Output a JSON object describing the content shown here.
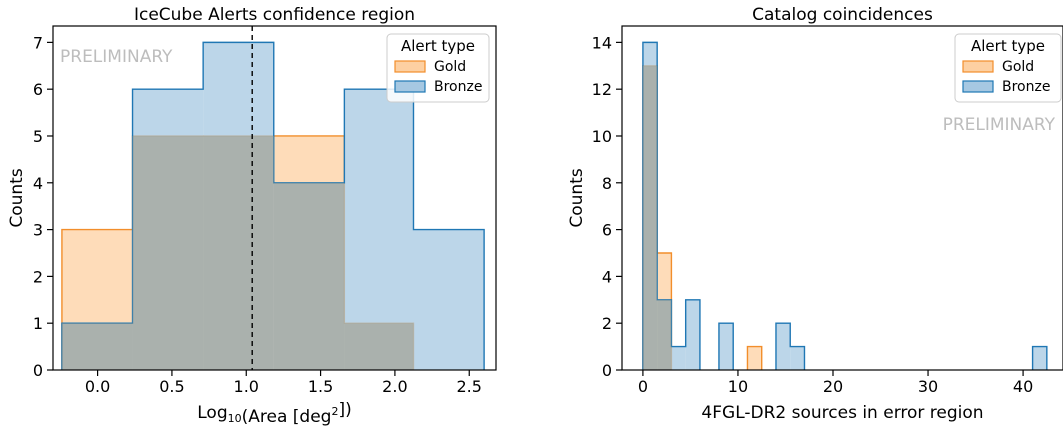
{
  "chart_data": [
    {
      "type": "histogram",
      "title": "IceCube Alerts confidence region",
      "xlabel_prefix": "Log",
      "xlabel_sub": "10",
      "xlabel_mid": "(Area [deg",
      "xlabel_sup": "2",
      "xlabel_end": "])",
      "ylabel": "Counts",
      "xlim": [
        -0.3,
        2.68
      ],
      "ylim": [
        0,
        7.35
      ],
      "xticks": [
        0.0,
        0.5,
        1.0,
        1.5,
        2.0,
        2.5
      ],
      "xtick_labels": [
        "0.0",
        "0.5",
        "1.0",
        "1.5",
        "2.0",
        "2.5"
      ],
      "yticks": [
        0,
        1,
        2,
        3,
        4,
        5,
        6,
        7
      ],
      "ytick_labels": [
        "0",
        "1",
        "2",
        "3",
        "4",
        "5",
        "6",
        "7"
      ],
      "watermark": "PRELIMINARY",
      "vline_x": 1.04,
      "legend_title": "Alert type",
      "legend_position": "top-right",
      "watermark_position": "top-left",
      "series": [
        {
          "name": "Gold",
          "color": "#f28e2b",
          "fill": "#fdd0a2",
          "bins": [
            [
              -0.24,
              0.235,
              3
            ],
            [
              0.235,
              0.71,
              5
            ],
            [
              0.71,
              1.185,
              5
            ],
            [
              1.185,
              1.66,
              5
            ],
            [
              1.66,
              2.125,
              1
            ]
          ]
        },
        {
          "name": "Bronze",
          "color": "#1f77b4",
          "fill": "#a6c8e2",
          "bins": [
            [
              -0.24,
              0.235,
              1
            ],
            [
              0.235,
              0.71,
              6
            ],
            [
              0.71,
              1.185,
              7
            ],
            [
              1.185,
              1.66,
              4
            ],
            [
              1.66,
              2.125,
              6
            ],
            [
              2.125,
              2.6,
              3
            ]
          ]
        }
      ]
    },
    {
      "type": "histogram",
      "title": "Catalog coincidences",
      "xlabel": "4FGL-DR2 sources in error region",
      "ylabel": "Counts",
      "xlim": [
        -2.2,
        44.2
      ],
      "ylim": [
        0,
        14.7
      ],
      "xticks": [
        0,
        10,
        20,
        30,
        40
      ],
      "xtick_labels": [
        "0",
        "10",
        "20",
        "30",
        "40"
      ],
      "yticks": [
        0,
        2,
        4,
        6,
        8,
        10,
        12,
        14
      ],
      "ytick_labels": [
        "0",
        "2",
        "4",
        "6",
        "8",
        "10",
        "12",
        "14"
      ],
      "watermark": "PRELIMINARY",
      "legend_title": "Alert type",
      "legend_position": "top-right",
      "watermark_position": "upper-right",
      "series": [
        {
          "name": "Gold",
          "color": "#f28e2b",
          "fill": "#fdd0a2",
          "bins": [
            [
              0,
              1.5,
              13
            ],
            [
              1.5,
              3.0,
              5
            ],
            [
              11.0,
              12.5,
              1
            ]
          ]
        },
        {
          "name": "Bronze",
          "color": "#1f77b4",
          "fill": "#a6c8e2",
          "bins": [
            [
              0,
              1.5,
              14
            ],
            [
              1.5,
              3.0,
              3
            ],
            [
              3.0,
              4.5,
              1
            ],
            [
              4.5,
              6.0,
              3
            ],
            [
              8.0,
              9.5,
              2
            ],
            [
              14.0,
              15.5,
              2
            ],
            [
              15.5,
              17.0,
              1
            ],
            [
              41.0,
              42.5,
              1
            ]
          ]
        }
      ]
    }
  ]
}
